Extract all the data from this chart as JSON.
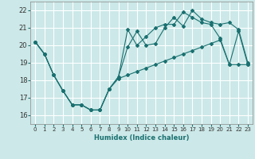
{
  "xlabel": "Humidex (Indice chaleur)",
  "xlim": [
    -0.5,
    23.5
  ],
  "ylim": [
    15.5,
    22.5
  ],
  "yticks": [
    16,
    17,
    18,
    19,
    20,
    21,
    22
  ],
  "xticks": [
    0,
    1,
    2,
    3,
    4,
    5,
    6,
    7,
    8,
    9,
    10,
    11,
    12,
    13,
    14,
    15,
    16,
    17,
    18,
    19,
    20,
    21,
    22,
    23
  ],
  "bg_color": "#cce8e8",
  "grid_color": "#ffffff",
  "line_color": "#1a7070",
  "line1_x": [
    0,
    1,
    2,
    3,
    4,
    5,
    6,
    7,
    8,
    9,
    10,
    11,
    12,
    13,
    14,
    15,
    16,
    17,
    18,
    19,
    20,
    21,
    22,
    23
  ],
  "line1_y": [
    20.2,
    19.5,
    18.3,
    17.4,
    16.6,
    16.6,
    16.3,
    16.3,
    17.5,
    18.2,
    20.9,
    20.0,
    20.5,
    21.0,
    21.2,
    21.2,
    21.9,
    21.6,
    21.3,
    21.2,
    20.4,
    18.9,
    20.8,
    18.9
  ],
  "line2_x": [
    0,
    1,
    2,
    3,
    4,
    5,
    6,
    7,
    8,
    9,
    10,
    11,
    12,
    13,
    14,
    15,
    16,
    17,
    18,
    19,
    20,
    21,
    22,
    23
  ],
  "line2_y": [
    20.2,
    19.5,
    18.3,
    17.4,
    16.6,
    16.6,
    16.3,
    16.3,
    17.5,
    18.2,
    19.9,
    20.8,
    20.0,
    20.1,
    21.0,
    21.6,
    21.1,
    22.0,
    21.5,
    21.3,
    21.2,
    21.3,
    20.9,
    19.0
  ],
  "line3_x": [
    0,
    1,
    2,
    3,
    4,
    5,
    6,
    7,
    8,
    9,
    10,
    11,
    12,
    13,
    14,
    15,
    16,
    17,
    18,
    19,
    20,
    21,
    22,
    23
  ],
  "line3_y": [
    20.2,
    19.5,
    18.3,
    17.4,
    16.6,
    16.6,
    16.3,
    16.3,
    17.5,
    18.1,
    18.3,
    18.5,
    18.7,
    18.9,
    19.1,
    19.3,
    19.5,
    19.7,
    19.9,
    20.1,
    20.3,
    18.9,
    18.9,
    18.9
  ]
}
